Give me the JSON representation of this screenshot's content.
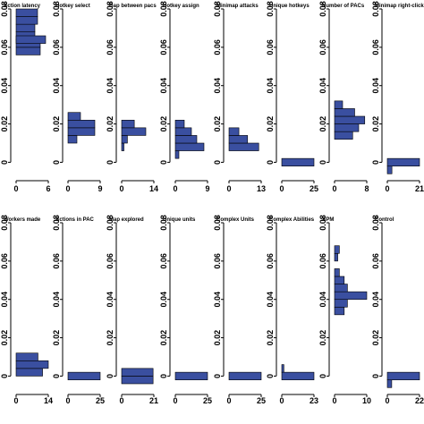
{
  "chart_data": {
    "type": "bar",
    "orientation": "horizontal",
    "shared_y_axis_ticks": [
      "0",
      "0.02",
      "0.04",
      "0.06",
      "0.08"
    ],
    "ylim": [
      -0.004,
      0.08
    ],
    "bar_color": "#3a4fa0",
    "panels": [
      {
        "title": "Action latency",
        "xticks": [
          "0",
          "6"
        ],
        "xlim": [
          0,
          6
        ],
        "bins": [
          [
            0.056,
            0.06,
            4.5
          ],
          [
            0.06,
            0.064,
            4.5
          ],
          [
            0.064,
            0.068,
            3.5
          ],
          [
            0.068,
            0.072,
            3.5
          ],
          [
            0.072,
            0.076,
            4.0
          ],
          [
            0.076,
            0.08,
            4.0
          ],
          [
            0.062,
            0.066,
            5.5
          ]
        ]
      },
      {
        "title": "Hotkey select",
        "xticks": [
          "0",
          "9"
        ],
        "xlim": [
          0,
          9
        ],
        "bins": [
          [
            0.01,
            0.014,
            2.5
          ],
          [
            0.014,
            0.018,
            7.5
          ],
          [
            0.018,
            0.022,
            7.5
          ],
          [
            0.022,
            0.026,
            3.5
          ]
        ]
      },
      {
        "title": "Gap between pacs",
        "xticks": [
          "0",
          "14"
        ],
        "xlim": [
          0,
          14
        ],
        "bins": [
          [
            0.006,
            0.01,
            1.0
          ],
          [
            0.01,
            0.014,
            2.5
          ],
          [
            0.014,
            0.018,
            10.5
          ],
          [
            0.018,
            0.022,
            5.5
          ]
        ]
      },
      {
        "title": "Hotkey assign",
        "xticks": [
          "0",
          "9"
        ],
        "xlim": [
          0,
          9
        ],
        "bins": [
          [
            0.002,
            0.006,
            1.0
          ],
          [
            0.006,
            0.01,
            8.0
          ],
          [
            0.01,
            0.014,
            6.0
          ],
          [
            0.014,
            0.018,
            4.5
          ],
          [
            0.018,
            0.022,
            2.5
          ]
        ]
      },
      {
        "title": "Minimap attacks",
        "xticks": [
          "0",
          "13"
        ],
        "xlim": [
          0,
          13
        ],
        "bins": [
          [
            0.006,
            0.01,
            12.0
          ],
          [
            0.01,
            0.014,
            7.5
          ],
          [
            0.014,
            0.018,
            4.0
          ]
        ]
      },
      {
        "title": "Unique hotkeys",
        "xticks": [
          "0",
          "25"
        ],
        "xlim": [
          0,
          25
        ],
        "bins": [
          [
            -0.002,
            0.002,
            25.0
          ]
        ]
      },
      {
        "title": "Number of PACs",
        "xticks": [
          "0",
          "8"
        ],
        "xlim": [
          0,
          8
        ],
        "bins": [
          [
            0.012,
            0.016,
            4.5
          ],
          [
            0.016,
            0.02,
            6.0
          ],
          [
            0.02,
            0.024,
            7.5
          ],
          [
            0.024,
            0.028,
            5.0
          ],
          [
            0.028,
            0.032,
            2.0
          ]
        ]
      },
      {
        "title": "Minimap right-clicks",
        "xticks": [
          "0",
          "21"
        ],
        "xlim": [
          0,
          21
        ],
        "bins": [
          [
            -0.006,
            -0.002,
            3.0
          ],
          [
            -0.002,
            0.002,
            21.0
          ]
        ]
      },
      {
        "title": "Workers made",
        "xticks": [
          "0",
          "14"
        ],
        "xlim": [
          0,
          14
        ],
        "bins": [
          [
            0.0,
            0.004,
            11.5
          ],
          [
            0.004,
            0.008,
            14.0
          ],
          [
            0.008,
            0.012,
            9.5
          ]
        ]
      },
      {
        "title": "Actions in PAC",
        "xticks": [
          "0",
          "25"
        ],
        "xlim": [
          0,
          25
        ],
        "bins": [
          [
            -0.002,
            0.002,
            25.0
          ]
        ]
      },
      {
        "title": "Map explored",
        "xticks": [
          "0",
          "21"
        ],
        "xlim": [
          0,
          21
        ],
        "bins": [
          [
            -0.004,
            0.0,
            20.5
          ],
          [
            0.0,
            0.004,
            20.5
          ]
        ]
      },
      {
        "title": "Unique units",
        "xticks": [
          "0",
          "25"
        ],
        "xlim": [
          0,
          25
        ],
        "bins": [
          [
            -0.002,
            0.002,
            25.0
          ]
        ]
      },
      {
        "title": "Complex Units",
        "xticks": [
          "0",
          "25"
        ],
        "xlim": [
          0,
          25
        ],
        "bins": [
          [
            -0.002,
            0.002,
            25.0
          ]
        ]
      },
      {
        "title": "Complex Abilities",
        "xticks": [
          "0",
          "23"
        ],
        "xlim": [
          0,
          23
        ],
        "bins": [
          [
            -0.002,
            0.002,
            23.0
          ],
          [
            0.002,
            0.006,
            1.5
          ]
        ]
      },
      {
        "title": "APM",
        "xticks": [
          "0",
          "10"
        ],
        "xlim": [
          0,
          10
        ],
        "bins": [
          [
            0.032,
            0.036,
            3.0
          ],
          [
            0.036,
            0.04,
            4.0
          ],
          [
            0.04,
            0.044,
            10.0
          ],
          [
            0.044,
            0.048,
            4.0
          ],
          [
            0.048,
            0.052,
            3.0
          ],
          [
            0.052,
            0.056,
            1.5
          ],
          [
            0.06,
            0.064,
            1.0
          ],
          [
            0.064,
            0.068,
            1.5
          ]
        ]
      },
      {
        "title": "Control",
        "xticks": [
          "0",
          "22"
        ],
        "xlim": [
          0,
          22
        ],
        "bins": [
          [
            -0.006,
            -0.002,
            3.0
          ],
          [
            -0.002,
            0.002,
            22.0
          ]
        ]
      }
    ]
  }
}
